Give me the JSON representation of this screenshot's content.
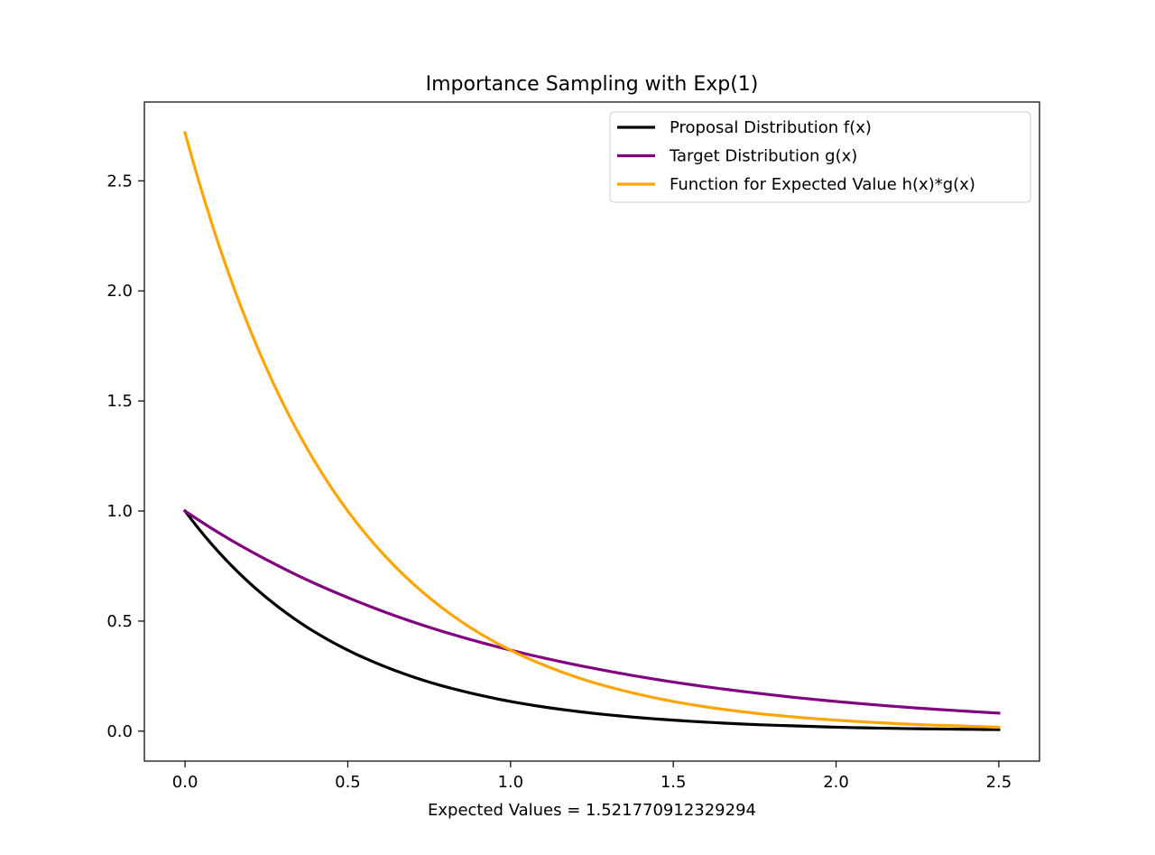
{
  "chart_data": {
    "type": "line",
    "title": "Importance Sampling with Exp(1)",
    "xlabel": "Expected Values = 1.521770912329294",
    "ylabel": "",
    "xlim": [
      -0.125,
      2.625
    ],
    "ylim": [
      -0.136,
      2.858
    ],
    "xticks": [
      0.0,
      0.5,
      1.0,
      1.5,
      2.0,
      2.5
    ],
    "xtick_labels": [
      "0.0",
      "0.5",
      "1.0",
      "1.5",
      "2.0",
      "2.5"
    ],
    "yticks": [
      0.0,
      0.5,
      1.0,
      1.5,
      2.0,
      2.5
    ],
    "ytick_labels": [
      "0.0",
      "0.5",
      "1.0",
      "1.5",
      "2.0",
      "2.5"
    ],
    "grid": false,
    "legend_position": "top-right",
    "x": [
      0.0,
      0.125,
      0.25,
      0.375,
      0.5,
      0.625,
      0.75,
      0.875,
      1.0,
      1.125,
      1.25,
      1.375,
      1.5,
      1.625,
      1.75,
      1.875,
      2.0,
      2.125,
      2.25,
      2.375,
      2.5
    ],
    "series": [
      {
        "name": "Proposal Distribution f(x)",
        "color": "#000000",
        "values": [
          1.0,
          0.779,
          0.607,
          0.472,
          0.368,
          0.287,
          0.223,
          0.174,
          0.135,
          0.105,
          0.082,
          0.064,
          0.05,
          0.039,
          0.03,
          0.024,
          0.018,
          0.014,
          0.011,
          0.009,
          0.007
        ]
      },
      {
        "name": "Target Distribution g(x)",
        "color": "#800080",
        "values": [
          1.0,
          0.882,
          0.779,
          0.687,
          0.607,
          0.535,
          0.472,
          0.417,
          0.368,
          0.325,
          0.287,
          0.253,
          0.223,
          0.197,
          0.174,
          0.153,
          0.135,
          0.119,
          0.105,
          0.093,
          0.082
        ]
      },
      {
        "name": "Function for Expected Value h(x)*g(x)",
        "color": "#ffa500",
        "values": [
          2.718,
          2.117,
          1.649,
          1.284,
          1.0,
          0.779,
          0.607,
          0.472,
          0.368,
          0.287,
          0.223,
          0.174,
          0.135,
          0.105,
          0.082,
          0.064,
          0.05,
          0.039,
          0.03,
          0.024,
          0.018
        ]
      }
    ]
  }
}
